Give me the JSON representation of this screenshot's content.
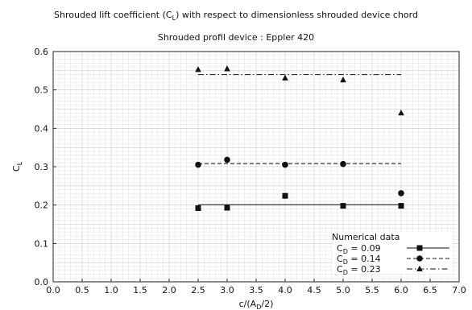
{
  "chart_data": {
    "type": "scatter",
    "title": "Shrouded lift coefficient (C",
    "title_sub": "L",
    "title_end": ") with respect to dimensionless shrouded device chord",
    "subtitle": "Shrouded profil device : Eppler 420",
    "xlabel_main": "c/(A",
    "xlabel_sub": "D",
    "xlabel_end": "/2)",
    "ylabel_main": "C",
    "ylabel_sub": "L",
    "xlim": [
      0,
      7
    ],
    "ylim": [
      0,
      0.6
    ],
    "x_ticks": [
      "0.0",
      "0.5",
      "1.0",
      "1.5",
      "2.0",
      "2.5",
      "3.0",
      "3.5",
      "4.0",
      "4.5",
      "5.0",
      "5.5",
      "6.0",
      "6.5",
      "7.0"
    ],
    "y_ticks": [
      "0.0",
      "0.1",
      "0.2",
      "0.3",
      "0.4",
      "0.5",
      "0.6"
    ],
    "grid": true,
    "legend": {
      "title": "Numerical data",
      "placement": "bottom-right",
      "entry_prefix": "C",
      "entry_sub": "D"
    },
    "series": [
      {
        "name": " = 0.09",
        "marker": "square",
        "line": "solid",
        "x": [
          2.5,
          3.0,
          4.0,
          5.0,
          6.0
        ],
        "y": [
          0.192,
          0.193,
          0.224,
          0.198,
          0.198
        ],
        "fit": {
          "x": [
            2.5,
            6.0
          ],
          "y": [
            0.201,
            0.201
          ]
        }
      },
      {
        "name": " = 0.14",
        "marker": "circle",
        "line": "dashed",
        "x": [
          2.5,
          3.0,
          4.0,
          5.0,
          6.0
        ],
        "y": [
          0.305,
          0.318,
          0.305,
          0.307,
          0.231
        ],
        "fit": {
          "x": [
            2.5,
            6.0
          ],
          "y": [
            0.308,
            0.308
          ]
        }
      },
      {
        "name": " = 0.23",
        "marker": "triangle",
        "line": "dashdot",
        "x": [
          2.5,
          3.0,
          4.0,
          5.0,
          6.0
        ],
        "y": [
          0.553,
          0.555,
          0.531,
          0.526,
          0.44
        ],
        "fit": {
          "x": [
            2.5,
            6.0
          ],
          "y": [
            0.54,
            0.54
          ]
        }
      }
    ]
  }
}
